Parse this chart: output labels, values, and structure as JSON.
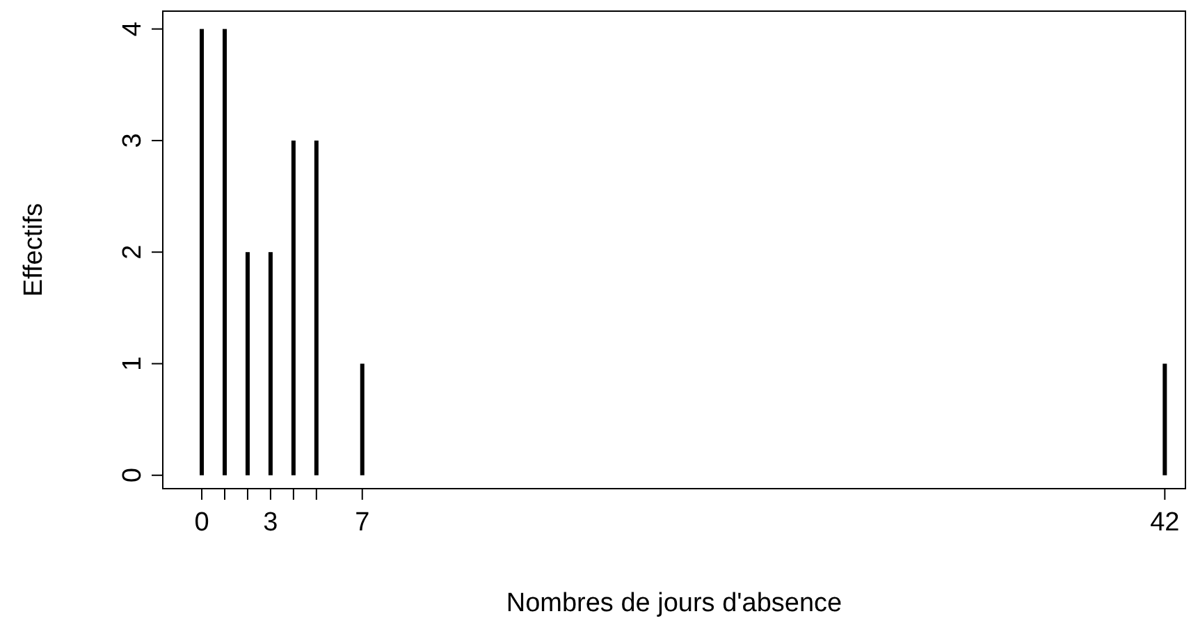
{
  "chart_data": {
    "type": "bar",
    "xlabel": "Nombres de jours d'absence",
    "ylabel": "Effectifs",
    "x": [
      0,
      1,
      2,
      3,
      4,
      5,
      7,
      42
    ],
    "values": [
      4,
      4,
      2,
      2,
      3,
      3,
      1,
      1
    ],
    "color": "#000000",
    "xlim": [
      -1.7,
      42.9
    ],
    "ylim": [
      -0.12,
      4.16
    ],
    "xticks": [
      0,
      {
        "value": 1,
        "label": null
      },
      {
        "value": 2,
        "label": null
      },
      3,
      {
        "value": 4,
        "label": null
      },
      {
        "value": 5,
        "label": null
      },
      7,
      42
    ],
    "yticks": [
      0,
      1,
      2,
      3,
      4
    ],
    "grid": false
  }
}
